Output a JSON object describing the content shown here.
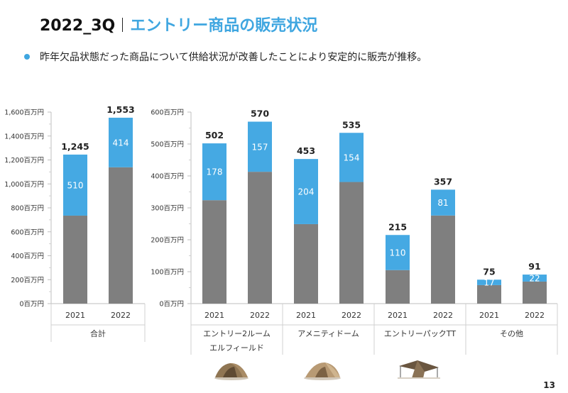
{
  "header": {
    "code": "2022_3Q",
    "title": "エントリー商品の販売状況"
  },
  "bullet": "昨年欠品状態だった商品について供給状況が改善したことにより安定的に販売が推移。",
  "page_number": "13",
  "colors": {
    "base": "#7F7F7F",
    "increase": "#45A9E3",
    "accent": "#3FA6E0"
  },
  "chart_data": [
    {
      "type": "bar",
      "stacked": true,
      "y_unit": "百万円",
      "ylim": [
        0,
        1600
      ],
      "yticks": [
        "0百万円",
        "200百万円",
        "400百万円",
        "600百万円",
        "800百万円",
        "1,000百万円",
        "1,200百万円",
        "1,400百万円",
        "1,600百万円"
      ],
      "groups": [
        {
          "name": "合計",
          "bars": [
            {
              "year": "2021",
              "total": 1245,
              "total_label": "1,245",
              "top": 510
            },
            {
              "year": "2022",
              "total": 1553,
              "total_label": "1,553",
              "top": 414
            }
          ]
        }
      ]
    },
    {
      "type": "bar",
      "stacked": true,
      "y_unit": "百万円",
      "ylim": [
        0,
        600
      ],
      "yticks": [
        "0百万円",
        "100百万円",
        "200百万円",
        "300百万円",
        "400百万円",
        "500百万円",
        "600百万円"
      ],
      "groups": [
        {
          "name": "エントリー2ルーム\nエルフィールド",
          "bars": [
            {
              "year": "2021",
              "total": 502,
              "total_label": "502",
              "top": 178
            },
            {
              "year": "2022",
              "total": 570,
              "total_label": "570",
              "top": 157
            }
          ]
        },
        {
          "name": "アメニティドーム",
          "bars": [
            {
              "year": "2021",
              "total": 453,
              "total_label": "453",
              "top": 204
            },
            {
              "year": "2022",
              "total": 535,
              "total_label": "535",
              "top": 154
            }
          ]
        },
        {
          "name": "エントリーパックTT",
          "bars": [
            {
              "year": "2021",
              "total": 215,
              "total_label": "215",
              "top": 110
            },
            {
              "year": "2022",
              "total": 357,
              "total_label": "357",
              "top": 81
            }
          ]
        },
        {
          "name": "その他",
          "bars": [
            {
              "year": "2021",
              "total": 75,
              "total_label": "75",
              "top": 17
            },
            {
              "year": "2022",
              "total": 91,
              "total_label": "91",
              "top": 22
            }
          ]
        }
      ]
    }
  ]
}
